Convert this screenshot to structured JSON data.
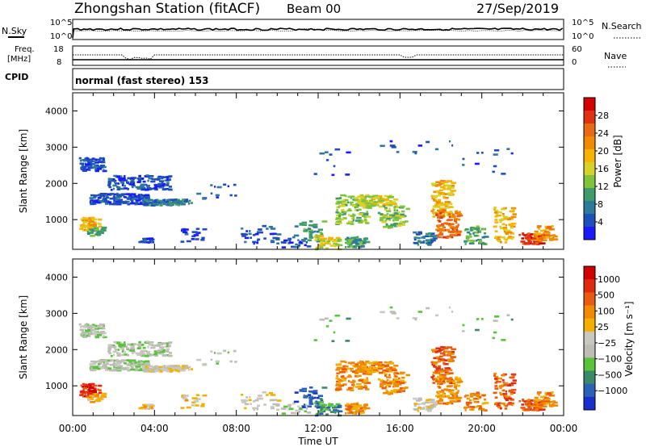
{
  "header": {
    "station": "Zhongshan Station (fitACF)",
    "beam": "Beam 00",
    "date": "27/Sep/2019"
  },
  "top_panels": {
    "nsky_label": "N.Sky",
    "nsearch_label": "N.Search",
    "nsky_ticks": [
      "10^5",
      "10^0"
    ],
    "nsearch_ticks": [
      "10^5",
      "10^0"
    ],
    "freq_label_line1": "Freq.",
    "freq_label_line2": "[MHz]",
    "freq_ticks": [
      "18",
      "8"
    ],
    "nave_label": "Nave",
    "nave_ticks": [
      "60",
      "0"
    ],
    "cpid_label": "CPID",
    "cpid_text": "normal (fast stereo) 153"
  },
  "chart_data": [
    {
      "type": "heatmap",
      "name": "power",
      "ylabel": "Slant Range [km]",
      "yticks": [
        "4000",
        "3000",
        "2000",
        "1000"
      ],
      "ylim": [
        180,
        4500
      ],
      "xlim": [
        0,
        24
      ],
      "colorbar_label": "Power [dB]",
      "colorbar_ticks": [
        "28",
        "24",
        "20",
        "16",
        "12",
        "8",
        "4"
      ],
      "colors": [
        "#1a1aff",
        "#1f4fb8",
        "#2d7a9a",
        "#3f9c6a",
        "#7fc43a",
        "#d6d22a",
        "#f5b400",
        "#f08a00",
        "#e86a12",
        "#e03010",
        "#d40000"
      ]
    },
    {
      "type": "heatmap",
      "name": "velocity",
      "ylabel": "Slant Range [km]",
      "yticks": [
        "4000",
        "3000",
        "2000",
        "1000"
      ],
      "ylim": [
        180,
        4500
      ],
      "xlim": [
        0,
        24
      ],
      "colorbar_label": "Velocity [m s⁻¹]",
      "colorbar_ticks": [
        "1000",
        "500",
        "100",
        "25",
        "−25",
        "−100",
        "−500",
        "−1000"
      ],
      "colors": [
        "#1a2fd0",
        "#2a62b8",
        "#3a8a6a",
        "#59c33c",
        "#bdbdb5",
        "#c8c8c0",
        "#f3b000",
        "#f08a00",
        "#ea5a10",
        "#e02a10",
        "#d00000"
      ]
    }
  ],
  "xaxis": {
    "ticks": [
      "00:00",
      "04:00",
      "08:00",
      "12:00",
      "16:00",
      "20:00",
      "00:00"
    ],
    "label": "Time UT"
  }
}
